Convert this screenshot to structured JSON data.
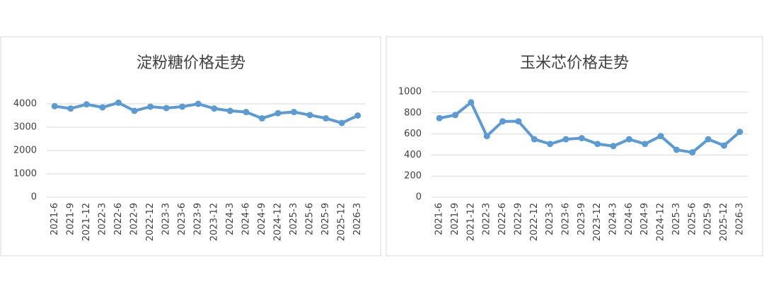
{
  "chart_data": [
    {
      "type": "line",
      "title": "淀粉糖价格走势",
      "categories": [
        "2021-6",
        "2021-9",
        "2021-12",
        "2022-3",
        "2022-6",
        "2022-9",
        "2022-12",
        "2023-3",
        "2023-6",
        "2023-9",
        "2023-12",
        "2024-3",
        "2024-6",
        "2024-9",
        "2024-12",
        "2025-3",
        "2025-6",
        "2025-9",
        "2025-12",
        "2026-3"
      ],
      "values": [
        3900,
        3800,
        3980,
        3850,
        4050,
        3700,
        3880,
        3820,
        3880,
        4000,
        3800,
        3700,
        3650,
        3380,
        3600,
        3650,
        3520,
        3380,
        3180,
        3500
      ],
      "color": "#5b9bd5",
      "ylim": [
        0,
        4000
      ],
      "yticks": [
        0,
        1000,
        2000,
        3000,
        4000
      ],
      "grid": true
    },
    {
      "type": "line",
      "title": "玉米芯价格走势",
      "categories": [
        "2021-6",
        "2021-9",
        "2021-12",
        "2022-3",
        "2022-6",
        "2022-9",
        "2022-12",
        "2023-3",
        "2023-6",
        "2023-9",
        "2023-12",
        "2024-3",
        "2024-6",
        "2024-9",
        "2024-12",
        "2025-3",
        "2025-6",
        "2025-9",
        "2025-12",
        "2026-3"
      ],
      "values": [
        750,
        780,
        900,
        580,
        720,
        720,
        550,
        505,
        550,
        560,
        505,
        485,
        550,
        505,
        580,
        450,
        425,
        550,
        490,
        620
      ],
      "color": "#5b9bd5",
      "ylim": [
        0,
        1000
      ],
      "yticks": [
        0,
        200,
        400,
        600,
        800,
        1000
      ],
      "grid": true
    }
  ]
}
